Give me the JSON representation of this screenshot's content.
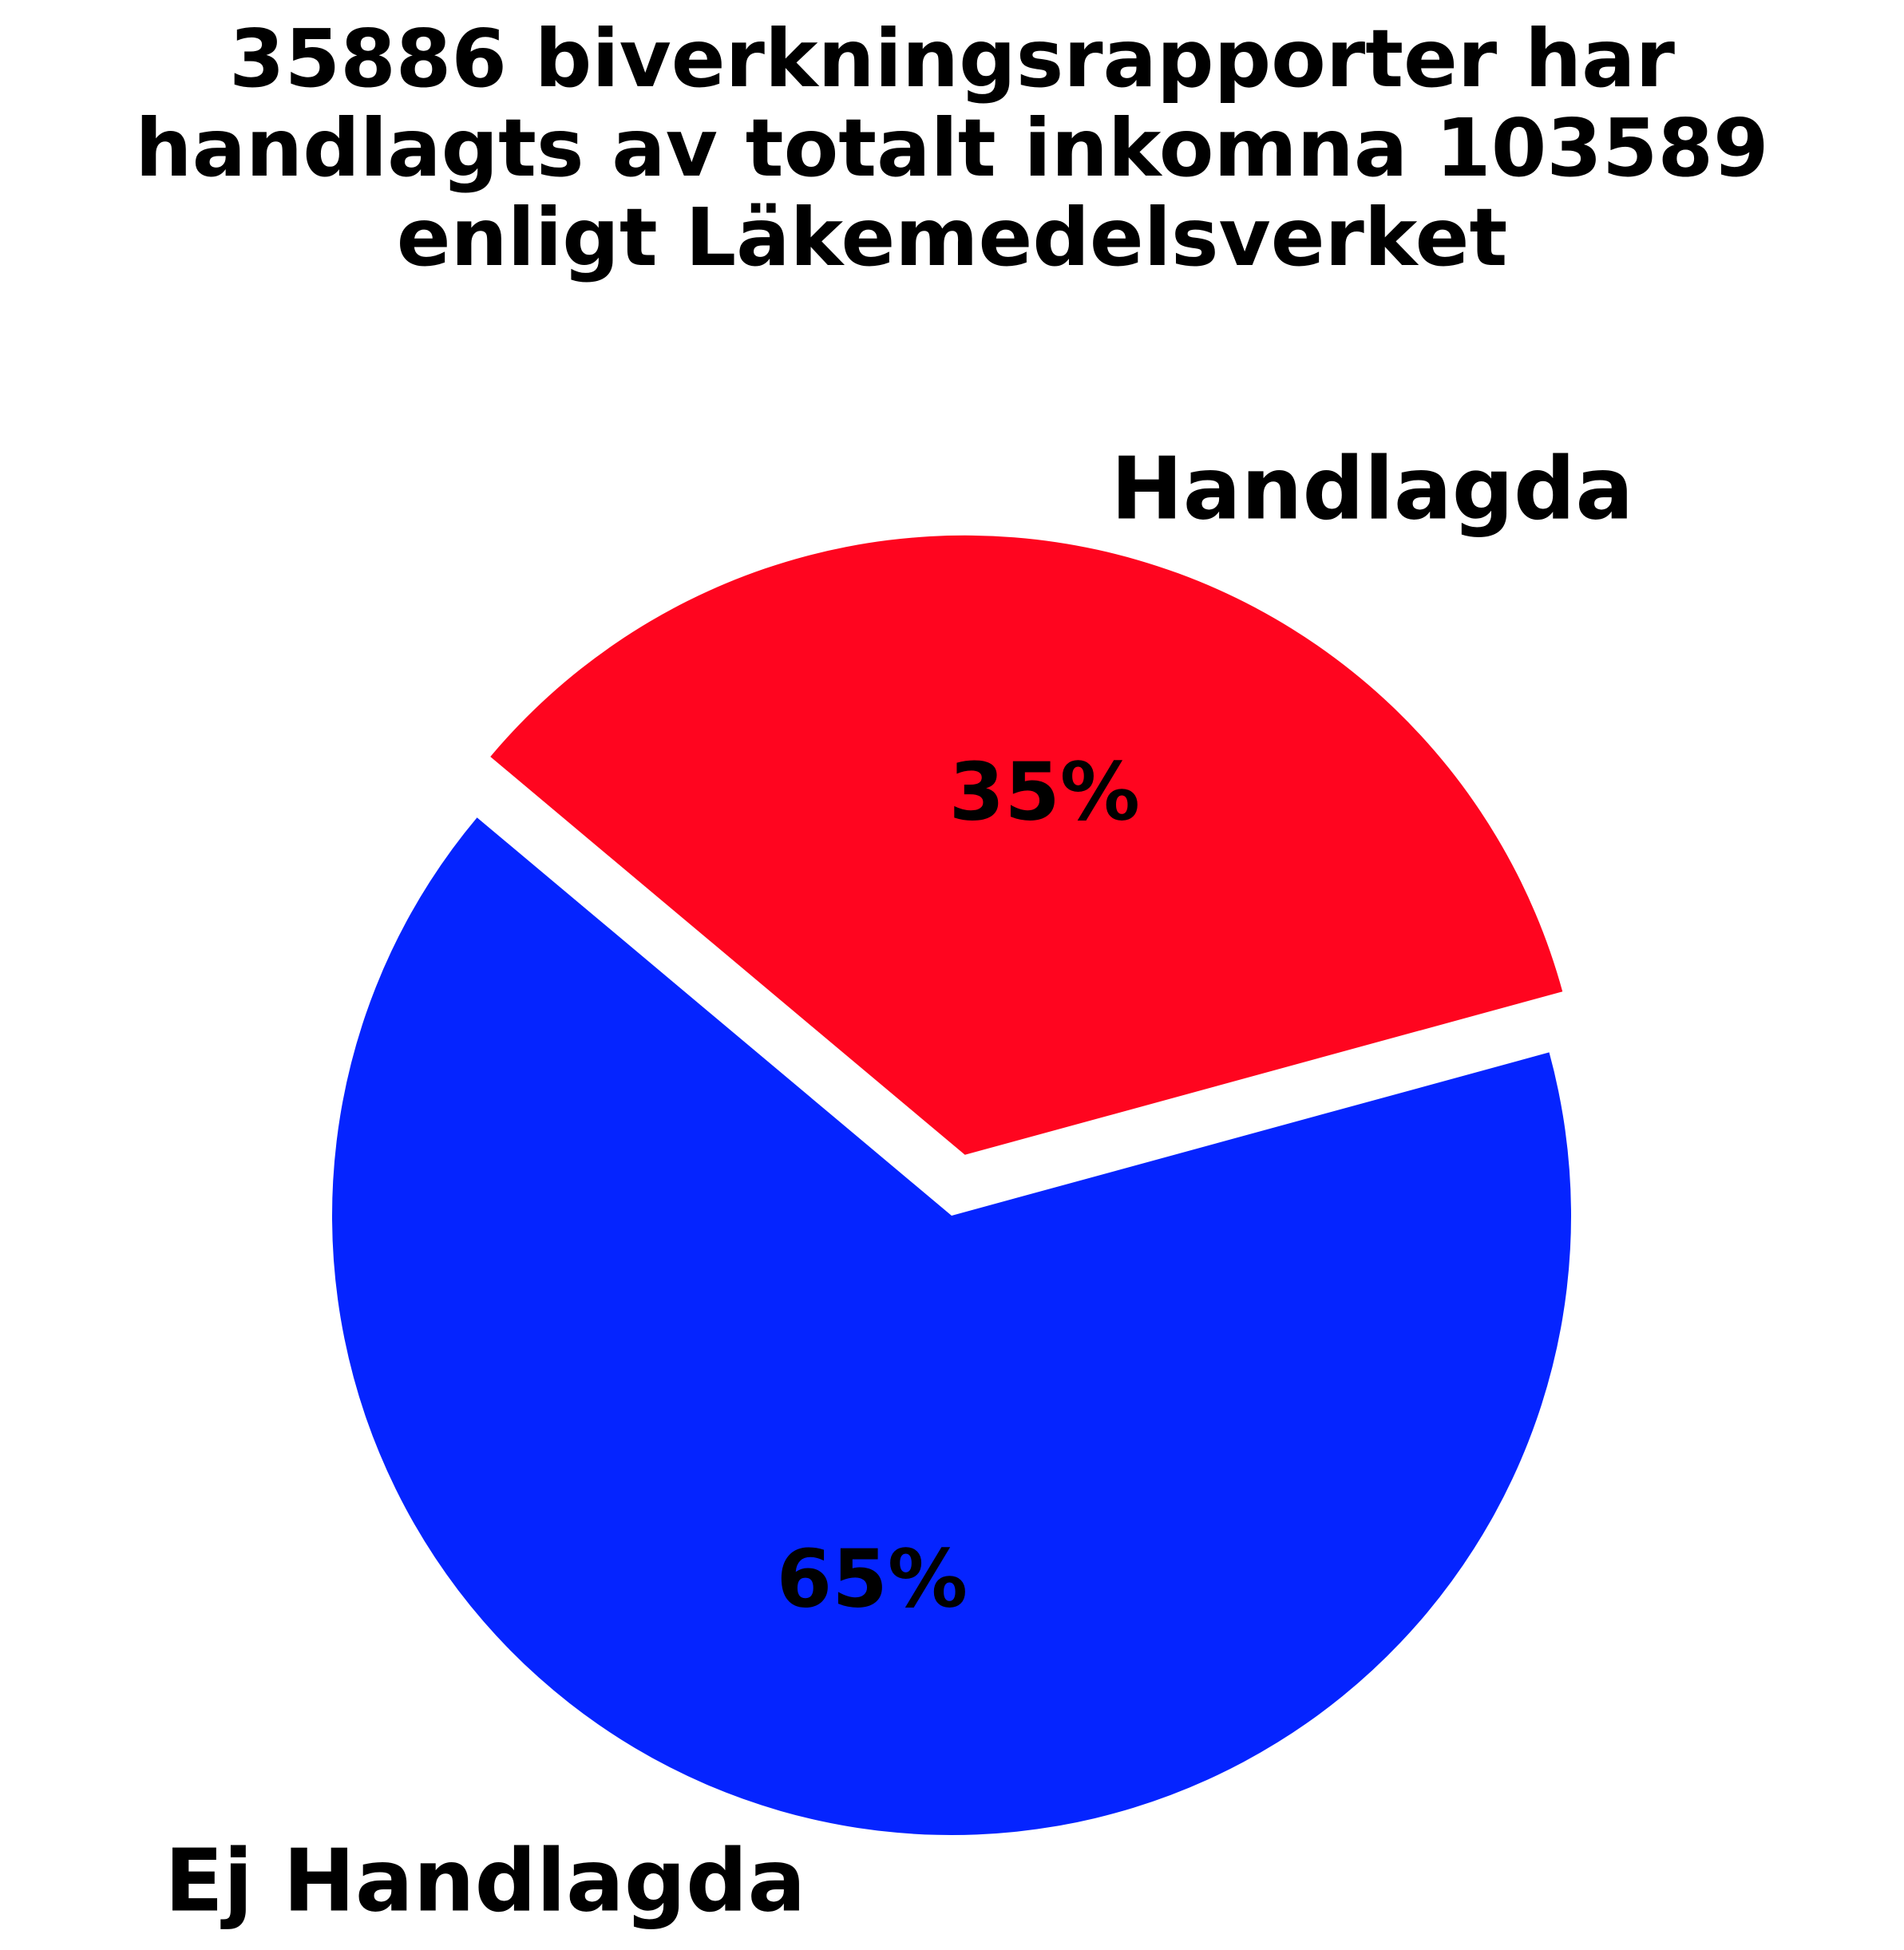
{
  "chart_data": {
    "type": "pie",
    "title_lines": [
      "35886 biverkningsrapporter har",
      "handlagts av totalt inkomna 103589",
      "enligt Läkemedelsverket"
    ],
    "slices": [
      {
        "name": "Handlagda",
        "value": 35886,
        "percent_label": "35%",
        "color": "#ff051f",
        "exploded": true
      },
      {
        "name": "Ej Handlagda",
        "value": 67703,
        "percent_label": "65%",
        "color": "#0524ff",
        "exploded": false
      }
    ],
    "total": 103589,
    "start_angle_deg": 140,
    "direction": "clockwise",
    "legend": "none"
  }
}
